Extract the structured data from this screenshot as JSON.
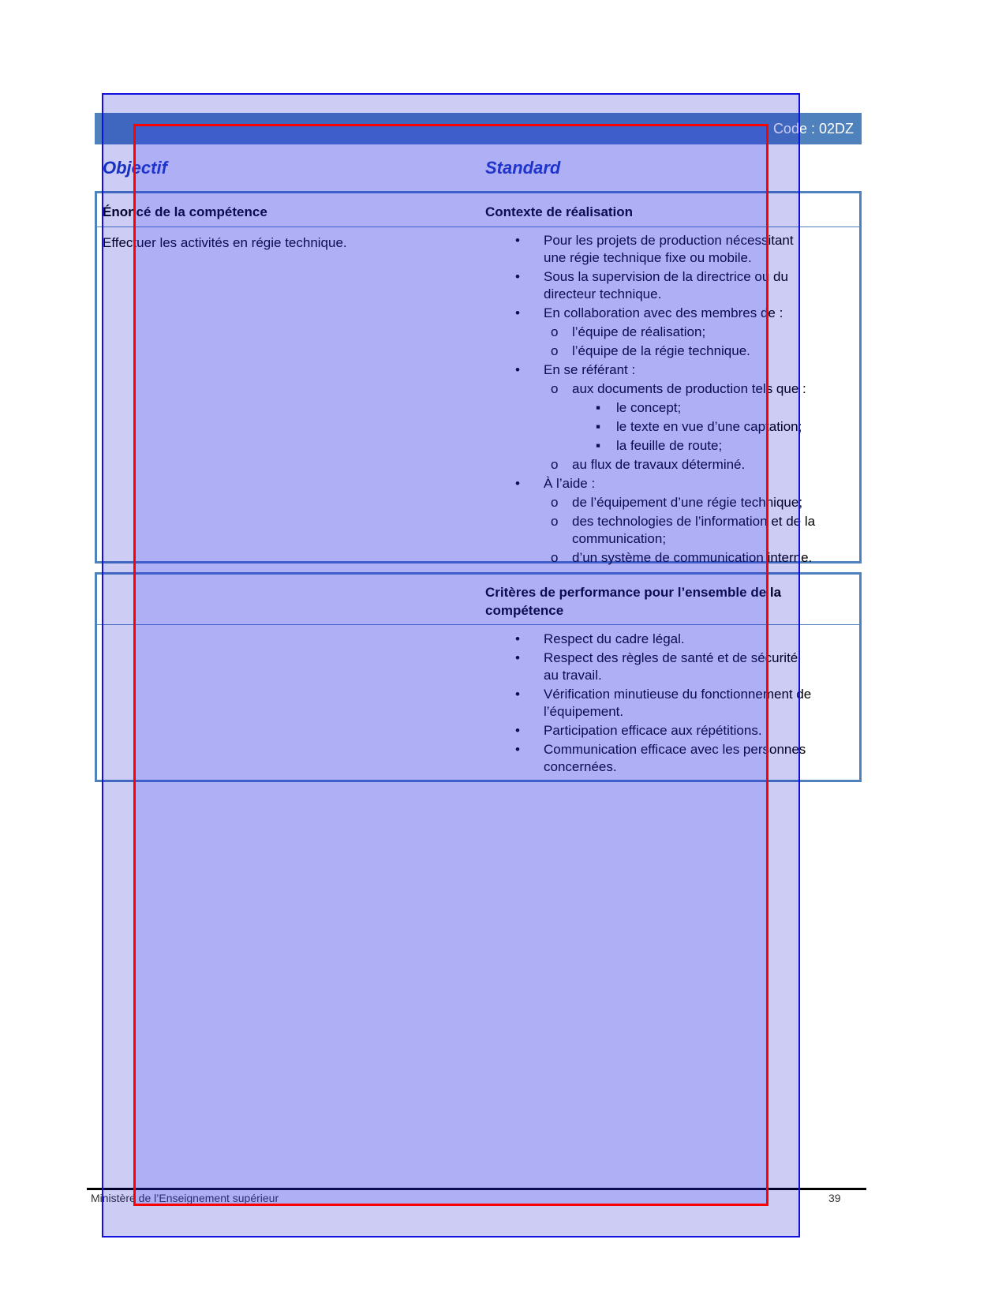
{
  "header": {
    "code": "Code :   02DZ"
  },
  "labels": {
    "objectif": "Objectif",
    "standard": "Standard"
  },
  "table1": {
    "left_header": "Énoncé de la compétence",
    "right_header": "Contexte de réalisation",
    "statement": "Effectuer les activités en régie technique.",
    "lines": [
      {
        "lvl": 1,
        "bullet": "•",
        "text": "Pour les projets de production nécessitant"
      },
      {
        "lvl": 1,
        "bullet": "",
        "text": "une régie technique fixe ou mobile."
      },
      {
        "lvl": 1,
        "bullet": "•",
        "text": "Sous la supervision de la directrice ou du"
      },
      {
        "lvl": 1,
        "bullet": "",
        "text": "directeur technique."
      },
      {
        "lvl": 1,
        "bullet": "•",
        "text": "En collaboration avec des membres de :"
      },
      {
        "lvl": 2,
        "bullet": "o",
        "text": "l’équipe de réalisation;"
      },
      {
        "lvl": 2,
        "bullet": "o",
        "text": "l’équipe de la régie technique."
      },
      {
        "lvl": 1,
        "bullet": "•",
        "text": "En se référant :"
      },
      {
        "lvl": 2,
        "bullet": "o",
        "text": "aux documents de production tels que :"
      },
      {
        "lvl": 3,
        "bullet": "▪",
        "text": "le concept;"
      },
      {
        "lvl": 3,
        "bullet": "▪",
        "text": "le texte en vue d’une captation;"
      },
      {
        "lvl": 3,
        "bullet": "▪",
        "text": "la feuille de route;"
      },
      {
        "lvl": 2,
        "bullet": "o",
        "text": "au flux de travaux déterminé."
      },
      {
        "lvl": 1,
        "bullet": "•",
        "text": "À l’aide :"
      },
      {
        "lvl": 2,
        "bullet": "o",
        "text": "de l’équipement d’une régie technique;"
      },
      {
        "lvl": 2,
        "bullet": "o",
        "text": "des technologies de l’information et de la"
      },
      {
        "lvl": 2,
        "bullet": "",
        "text": "communication;"
      },
      {
        "lvl": 2,
        "bullet": "o",
        "text": "d’un système de communication interne."
      }
    ]
  },
  "table2": {
    "header_line1": "Critères de performance pour l’ensemble de la",
    "header_line2": "compétence",
    "lines": [
      {
        "lvl": 1,
        "bullet": "•",
        "text": "Respect du cadre légal."
      },
      {
        "lvl": 1,
        "bullet": "•",
        "text": "Respect des règles de santé et de sécurité"
      },
      {
        "lvl": 1,
        "bullet": "",
        "text": "au travail."
      },
      {
        "lvl": 1,
        "bullet": "•",
        "text": "Vérification minutieuse du fonctionnement de"
      },
      {
        "lvl": 1,
        "bullet": "",
        "text": "l’équipement."
      },
      {
        "lvl": 1,
        "bullet": "•",
        "text": "Participation efficace aux répétitions."
      },
      {
        "lvl": 1,
        "bullet": "•",
        "text": "Communication efficace avec les personnes"
      },
      {
        "lvl": 1,
        "bullet": "",
        "text": "concernées."
      }
    ]
  },
  "footer": {
    "text": "Ministère de l’Enseignement supérieur",
    "page": "39"
  },
  "colors": {
    "accent": "#4f81bd",
    "heading": "#1f3fbf"
  }
}
